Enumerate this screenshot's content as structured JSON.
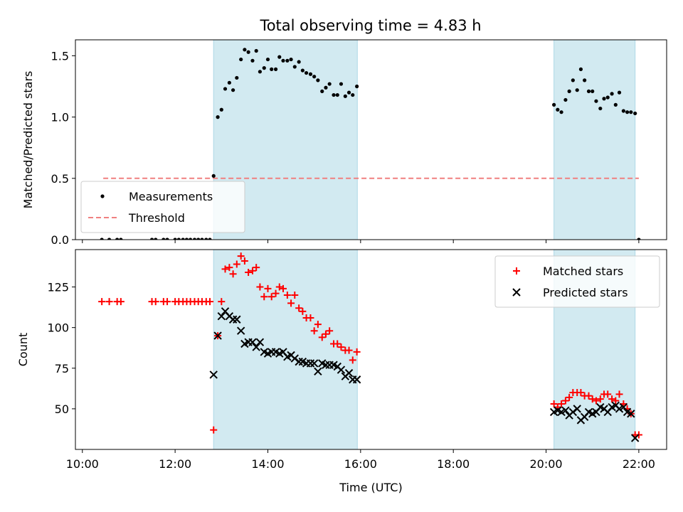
{
  "figure": {
    "title": "Total observing time = 4.83 h",
    "shade_color": "#add8e6"
  },
  "chart_data": [
    {
      "type": "scatter",
      "title": "Total observing time = 4.83 h",
      "xlabel": "",
      "ylabel": "Matched/Predicted stars",
      "xlim": [
        9.85,
        22.6
      ],
      "ylim": [
        0,
        1.63
      ],
      "yticks": [
        0.0,
        0.5,
        1.0,
        1.5
      ],
      "ytick_labels": [
        "0.0",
        "0.5",
        "1.0",
        "1.5"
      ],
      "shaded_intervals": [
        [
          12.83,
          15.93
        ],
        [
          20.17,
          21.92
        ]
      ],
      "legend_position": "lower-left",
      "threshold": {
        "name": "Threshold",
        "value": 0.5,
        "x_range": [
          10.45,
          22.0
        ],
        "color": "#f08080"
      },
      "series": [
        {
          "name": "Measurements",
          "color": "#000000",
          "marker": "dot",
          "x": [
            10.42,
            10.58,
            10.75,
            10.83,
            11.5,
            11.58,
            11.75,
            11.83,
            12.0,
            12.08,
            12.17,
            12.25,
            12.33,
            12.42,
            12.5,
            12.58,
            12.67,
            12.75,
            12.83,
            12.92,
            13.0,
            13.08,
            13.17,
            13.25,
            13.33,
            13.42,
            13.5,
            13.58,
            13.67,
            13.75,
            13.83,
            13.92,
            14.0,
            14.08,
            14.17,
            14.25,
            14.33,
            14.42,
            14.5,
            14.58,
            14.67,
            14.75,
            14.83,
            14.92,
            15.0,
            15.08,
            15.17,
            15.25,
            15.33,
            15.42,
            15.5,
            15.58,
            15.67,
            15.75,
            15.83,
            15.92,
            20.17,
            20.25,
            20.33,
            20.42,
            20.5,
            20.58,
            20.67,
            20.75,
            20.83,
            20.92,
            21.0,
            21.08,
            21.17,
            21.25,
            21.33,
            21.42,
            21.5,
            21.58,
            21.67,
            21.75,
            21.83,
            21.92,
            22.0
          ],
          "y": [
            0.0,
            0.0,
            0.0,
            0.0,
            0.0,
            0.0,
            0.0,
            0.0,
            0.0,
            0.0,
            0.0,
            0.0,
            0.0,
            0.0,
            0.0,
            0.0,
            0.0,
            0.0,
            0.52,
            1.0,
            1.06,
            1.23,
            1.28,
            1.22,
            1.32,
            1.47,
            1.55,
            1.53,
            1.46,
            1.54,
            1.37,
            1.4,
            1.47,
            1.39,
            1.39,
            1.49,
            1.46,
            1.46,
            1.47,
            1.41,
            1.45,
            1.38,
            1.36,
            1.35,
            1.33,
            1.3,
            1.21,
            1.24,
            1.27,
            1.18,
            1.18,
            1.27,
            1.17,
            1.2,
            1.18,
            1.25,
            1.1,
            1.06,
            1.04,
            1.14,
            1.21,
            1.3,
            1.22,
            1.39,
            1.3,
            1.21,
            1.21,
            1.13,
            1.07,
            1.15,
            1.16,
            1.19,
            1.1,
            1.2,
            1.05,
            1.04,
            1.04,
            1.03,
            0.0
          ]
        }
      ]
    },
    {
      "type": "scatter",
      "xlabel": "Time (UTC)",
      "ylabel": "Count",
      "xlim": [
        9.85,
        22.6
      ],
      "ylim": [
        25,
        148
      ],
      "yticks": [
        50,
        75,
        100,
        125
      ],
      "ytick_labels": [
        "50",
        "75",
        "100",
        "125"
      ],
      "xticks": [
        10,
        12,
        14,
        16,
        18,
        20,
        22
      ],
      "xtick_labels": [
        "10:00",
        "12:00",
        "14:00",
        "16:00",
        "18:00",
        "20:00",
        "22:00"
      ],
      "shaded_intervals": [
        [
          12.83,
          15.93
        ],
        [
          20.17,
          21.92
        ]
      ],
      "legend_position": "upper-right",
      "series": [
        {
          "name": "Matched stars",
          "color": "#ff0000",
          "marker": "plus",
          "x": [
            10.42,
            10.58,
            10.75,
            10.83,
            11.5,
            11.58,
            11.75,
            11.83,
            12.0,
            12.08,
            12.17,
            12.25,
            12.33,
            12.42,
            12.5,
            12.58,
            12.67,
            12.75,
            12.83,
            12.92,
            13.0,
            13.08,
            13.17,
            13.25,
            13.33,
            13.42,
            13.5,
            13.58,
            13.67,
            13.75,
            13.83,
            13.92,
            14.0,
            14.08,
            14.17,
            14.25,
            14.33,
            14.42,
            14.5,
            14.58,
            14.67,
            14.75,
            14.83,
            14.92,
            15.0,
            15.08,
            15.17,
            15.25,
            15.33,
            15.42,
            15.5,
            15.58,
            15.67,
            15.75,
            15.83,
            15.92,
            20.17,
            20.25,
            20.33,
            20.42,
            20.5,
            20.58,
            20.67,
            20.75,
            20.83,
            20.92,
            21.0,
            21.08,
            21.17,
            21.25,
            21.33,
            21.42,
            21.5,
            21.58,
            21.67,
            21.75,
            21.83,
            21.92,
            22.0
          ],
          "y": [
            116,
            116,
            116,
            116,
            116,
            116,
            116,
            116,
            116,
            116,
            116,
            116,
            116,
            116,
            116,
            116,
            116,
            116,
            37,
            95,
            116,
            136,
            137,
            133,
            139,
            144,
            141,
            134,
            135,
            137,
            125,
            119,
            124,
            119,
            121,
            125,
            124,
            120,
            115,
            120,
            112,
            110,
            106,
            106,
            98,
            102,
            94,
            96,
            98,
            90,
            90,
            88,
            86,
            86,
            80,
            85,
            53,
            51,
            53,
            55,
            57,
            60,
            60,
            60,
            58,
            58,
            56,
            55,
            56,
            59,
            59,
            56,
            55,
            59,
            53,
            50,
            47,
            34,
            34
          ]
        },
        {
          "name": "Predicted stars",
          "color": "#000000",
          "marker": "x",
          "x": [
            12.83,
            12.92,
            13.0,
            13.08,
            13.17,
            13.25,
            13.33,
            13.42,
            13.5,
            13.58,
            13.67,
            13.75,
            13.83,
            13.92,
            14.0,
            14.08,
            14.17,
            14.25,
            14.33,
            14.42,
            14.5,
            14.58,
            14.67,
            14.75,
            14.83,
            14.92,
            15.0,
            15.08,
            15.17,
            15.25,
            15.33,
            15.42,
            15.5,
            15.58,
            15.67,
            15.75,
            15.83,
            15.92,
            20.17,
            20.25,
            20.33,
            20.42,
            20.5,
            20.58,
            20.67,
            20.75,
            20.83,
            20.92,
            21.0,
            21.08,
            21.17,
            21.25,
            21.33,
            21.42,
            21.5,
            21.58,
            21.67,
            21.75,
            21.83,
            21.92
          ],
          "y": [
            71,
            95,
            107,
            110,
            107,
            105,
            105,
            98,
            90,
            91,
            91,
            88,
            91,
            85,
            84,
            85,
            85,
            84,
            85,
            82,
            83,
            81,
            79,
            79,
            78,
            78,
            78,
            73,
            78,
            77,
            77,
            77,
            76,
            74,
            70,
            72,
            68,
            68,
            48,
            49,
            48,
            49,
            46,
            48,
            50,
            43,
            45,
            48,
            47,
            48,
            51,
            50,
            48,
            51,
            52,
            50,
            51,
            48,
            47,
            32
          ]
        }
      ]
    }
  ]
}
